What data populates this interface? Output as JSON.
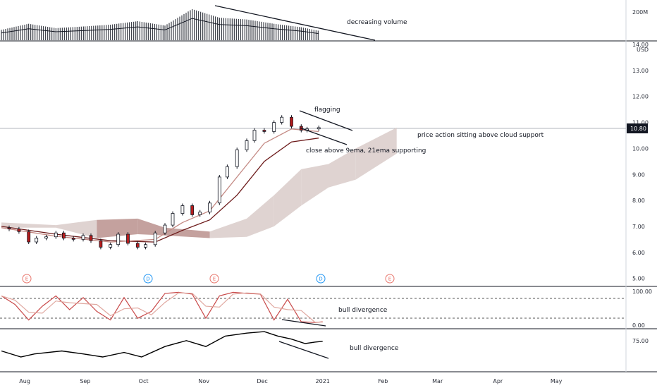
{
  "chart_data": {
    "type": "candlestick",
    "currency": "USD",
    "last_price": "10.80",
    "price_axis": {
      "min": 4.8,
      "max": 14.3,
      "ticks": [
        "5.00",
        "6.00",
        "7.00",
        "8.00",
        "9.00",
        "10.00",
        "11.00",
        "12.00",
        "13.00",
        "14.00"
      ]
    },
    "volume_axis": {
      "label": "200M"
    },
    "stoch_axis": {
      "ticks": [
        "100.00",
        "0.00"
      ]
    },
    "rsi_axis": {
      "ticks": [
        "75.00"
      ]
    },
    "x_ticks": [
      "Aug",
      "Sep",
      "Oct",
      "Nov",
      "Dec",
      "2021",
      "Feb",
      "Mar",
      "Apr",
      "May"
    ],
    "event_badges": [
      {
        "label": "E",
        "color": "#e8756b"
      },
      {
        "label": "D",
        "color": "#2196f3"
      },
      {
        "label": "E",
        "color": "#e8756b"
      },
      {
        "label": "D",
        "color": "#2196f3"
      },
      {
        "label": "E",
        "color": "#e8756b"
      }
    ],
    "price": [
      {
        "date": "2020-07-20",
        "close": 6.95
      },
      {
        "date": "2020-07-24",
        "close": 6.9
      },
      {
        "date": "2020-07-29",
        "close": 6.8
      },
      {
        "date": "2020-08-03",
        "close": 6.4
      },
      {
        "date": "2020-08-07",
        "close": 6.55
      },
      {
        "date": "2020-08-12",
        "close": 6.6
      },
      {
        "date": "2020-08-17",
        "close": 6.75
      },
      {
        "date": "2020-08-21",
        "close": 6.55
      },
      {
        "date": "2020-08-26",
        "close": 6.5
      },
      {
        "date": "2020-08-31",
        "close": 6.65
      },
      {
        "date": "2020-09-04",
        "close": 6.45
      },
      {
        "date": "2020-09-09",
        "close": 6.2
      },
      {
        "date": "2020-09-14",
        "close": 6.3
      },
      {
        "date": "2020-09-18",
        "close": 6.7
      },
      {
        "date": "2020-09-23",
        "close": 6.35
      },
      {
        "date": "2020-09-28",
        "close": 6.2
      },
      {
        "date": "2020-10-02",
        "close": 6.3
      },
      {
        "date": "2020-10-07",
        "close": 6.75
      },
      {
        "date": "2020-10-12",
        "close": 7.05
      },
      {
        "date": "2020-10-16",
        "close": 7.5
      },
      {
        "date": "2020-10-21",
        "close": 7.8
      },
      {
        "date": "2020-10-26",
        "close": 7.45
      },
      {
        "date": "2020-10-30",
        "close": 7.55
      },
      {
        "date": "2020-11-04",
        "close": 7.9
      },
      {
        "date": "2020-11-09",
        "close": 8.9
      },
      {
        "date": "2020-11-13",
        "close": 9.3
      },
      {
        "date": "2020-11-18",
        "close": 9.95
      },
      {
        "date": "2020-11-23",
        "close": 10.3
      },
      {
        "date": "2020-11-27",
        "close": 10.7
      },
      {
        "date": "2020-12-02",
        "close": 10.65
      },
      {
        "date": "2020-12-07",
        "close": 11.0
      },
      {
        "date": "2020-12-11",
        "close": 11.2
      },
      {
        "date": "2020-12-16",
        "close": 10.85
      },
      {
        "date": "2020-12-21",
        "close": 10.7
      },
      {
        "date": "2020-12-24",
        "close": 10.75
      },
      {
        "date": "2020-12-30",
        "close": 10.8
      }
    ],
    "ema9": [
      {
        "date": "2020-07-20",
        "value": 6.95
      },
      {
        "date": "2020-08-17",
        "value": 6.62
      },
      {
        "date": "2020-09-14",
        "value": 6.4
      },
      {
        "date": "2020-10-07",
        "value": 6.5
      },
      {
        "date": "2020-10-21",
        "value": 7.15
      },
      {
        "date": "2020-11-04",
        "value": 7.6
      },
      {
        "date": "2020-11-18",
        "value": 8.9
      },
      {
        "date": "2020-12-02",
        "value": 10.2
      },
      {
        "date": "2020-12-16",
        "value": 10.75
      },
      {
        "date": "2020-12-30",
        "value": 10.65
      }
    ],
    "ema21": [
      {
        "date": "2020-07-20",
        "value": 7.0
      },
      {
        "date": "2020-08-17",
        "value": 6.7
      },
      {
        "date": "2020-09-14",
        "value": 6.45
      },
      {
        "date": "2020-10-07",
        "value": 6.4
      },
      {
        "date": "2020-10-21",
        "value": 6.85
      },
      {
        "date": "2020-11-04",
        "value": 7.25
      },
      {
        "date": "2020-11-18",
        "value": 8.2
      },
      {
        "date": "2020-12-02",
        "value": 9.5
      },
      {
        "date": "2020-12-16",
        "value": 10.25
      },
      {
        "date": "2020-12-30",
        "value": 10.4
      }
    ],
    "cloud": {
      "top": [
        {
          "date": "2020-07-20",
          "value": 7.15
        },
        {
          "date": "2020-08-17",
          "value": 7.05
        },
        {
          "date": "2020-09-07",
          "value": 7.25
        },
        {
          "date": "2020-09-28",
          "value": 7.3
        },
        {
          "date": "2020-10-12",
          "value": 6.95
        },
        {
          "date": "2020-11-04",
          "value": 6.8
        },
        {
          "date": "2020-11-23",
          "value": 7.3
        },
        {
          "date": "2020-12-07",
          "value": 8.2
        },
        {
          "date": "2020-12-21",
          "value": 9.2
        },
        {
          "date": "2021-01-04",
          "value": 9.4
        },
        {
          "date": "2021-01-18",
          "value": 10.0
        },
        {
          "date": "2021-02-08",
          "value": 10.8
        }
      ],
      "bottom": [
        {
          "date": "2020-07-20",
          "value": 6.95
        },
        {
          "date": "2020-08-17",
          "value": 6.95
        },
        {
          "date": "2020-09-07",
          "value": 6.55
        },
        {
          "date": "2020-09-28",
          "value": 6.7
        },
        {
          "date": "2020-10-12",
          "value": 6.65
        },
        {
          "date": "2020-11-04",
          "value": 6.55
        },
        {
          "date": "2020-11-23",
          "value": 6.6
        },
        {
          "date": "2020-12-07",
          "value": 7.0
        },
        {
          "date": "2020-12-21",
          "value": 7.8
        },
        {
          "date": "2021-01-04",
          "value": 8.5
        },
        {
          "date": "2021-01-18",
          "value": 8.8
        },
        {
          "date": "2021-02-08",
          "value": 9.8
        }
      ]
    },
    "stochastic": [
      {
        "date": "2020-07-20",
        "value": 85
      },
      {
        "date": "2020-07-27",
        "value": 60
      },
      {
        "date": "2020-08-03",
        "value": 15
      },
      {
        "date": "2020-08-10",
        "value": 55
      },
      {
        "date": "2020-08-17",
        "value": 85
      },
      {
        "date": "2020-08-24",
        "value": 45
      },
      {
        "date": "2020-08-31",
        "value": 80
      },
      {
        "date": "2020-09-07",
        "value": 40
      },
      {
        "date": "2020-09-14",
        "value": 15
      },
      {
        "date": "2020-09-21",
        "value": 80
      },
      {
        "date": "2020-09-28",
        "value": 20
      },
      {
        "date": "2020-10-05",
        "value": 40
      },
      {
        "date": "2020-10-12",
        "value": 92
      },
      {
        "date": "2020-10-19",
        "value": 95
      },
      {
        "date": "2020-10-26",
        "value": 90
      },
      {
        "date": "2020-11-02",
        "value": 20
      },
      {
        "date": "2020-11-09",
        "value": 85
      },
      {
        "date": "2020-11-16",
        "value": 95
      },
      {
        "date": "2020-11-23",
        "value": 92
      },
      {
        "date": "2020-11-30",
        "value": 90
      },
      {
        "date": "2020-12-07",
        "value": 15
      },
      {
        "date": "2020-12-14",
        "value": 75
      },
      {
        "date": "2020-12-21",
        "value": 10
      },
      {
        "date": "2020-12-28",
        "value": 8
      },
      {
        "date": "2021-01-01",
        "value": 10
      }
    ],
    "rsi": [
      {
        "date": "2020-07-20",
        "value": 52
      },
      {
        "date": "2020-07-30",
        "value": 44
      },
      {
        "date": "2020-08-06",
        "value": 48
      },
      {
        "date": "2020-08-20",
        "value": 52
      },
      {
        "date": "2020-08-31",
        "value": 48
      },
      {
        "date": "2020-09-10",
        "value": 44
      },
      {
        "date": "2020-09-21",
        "value": 50
      },
      {
        "date": "2020-09-30",
        "value": 44
      },
      {
        "date": "2020-10-12",
        "value": 58
      },
      {
        "date": "2020-10-23",
        "value": 66
      },
      {
        "date": "2020-11-02",
        "value": 58
      },
      {
        "date": "2020-11-12",
        "value": 72
      },
      {
        "date": "2020-11-23",
        "value": 76
      },
      {
        "date": "2020-12-02",
        "value": 78
      },
      {
        "date": "2020-12-09",
        "value": 72
      },
      {
        "date": "2020-12-16",
        "value": 68
      },
      {
        "date": "2020-12-23",
        "value": 62
      },
      {
        "date": "2020-12-28",
        "value": 64
      },
      {
        "date": "2021-01-01",
        "value": 65
      }
    ],
    "volume": [
      {
        "date": "2020-07-20",
        "value": 60
      },
      {
        "date": "2020-08-03",
        "value": 95
      },
      {
        "date": "2020-08-17",
        "value": 70
      },
      {
        "date": "2020-09-01",
        "value": 80
      },
      {
        "date": "2020-09-14",
        "value": 90
      },
      {
        "date": "2020-09-28",
        "value": 110
      },
      {
        "date": "2020-10-12",
        "value": 85
      },
      {
        "date": "2020-10-26",
        "value": 180
      },
      {
        "date": "2020-11-09",
        "value": 130
      },
      {
        "date": "2020-11-23",
        "value": 120
      },
      {
        "date": "2020-12-07",
        "value": 95
      },
      {
        "date": "2020-12-21",
        "value": 75
      },
      {
        "date": "2020-12-30",
        "value": 55
      }
    ],
    "annotations": [
      {
        "text": "decreasing volume"
      },
      {
        "text": "flagging"
      },
      {
        "text": "price action sitting above cloud support"
      },
      {
        "text": "close above 9ema, 21ema supporting"
      },
      {
        "text": "bull divergence"
      },
      {
        "text": "bull divergence"
      }
    ],
    "colors": {
      "bull": "#ffffff",
      "bear": "#b71c1c",
      "outline": "#131722",
      "ema9": "#c48a84",
      "ema21": "#6d1b1b",
      "cloud_bull": "#d7c8c6",
      "cloud_bear": "#b58a86",
      "stoch_k": "#c94a4a",
      "stoch_d": "#e0a8a0",
      "rsi": "#000000"
    }
  }
}
